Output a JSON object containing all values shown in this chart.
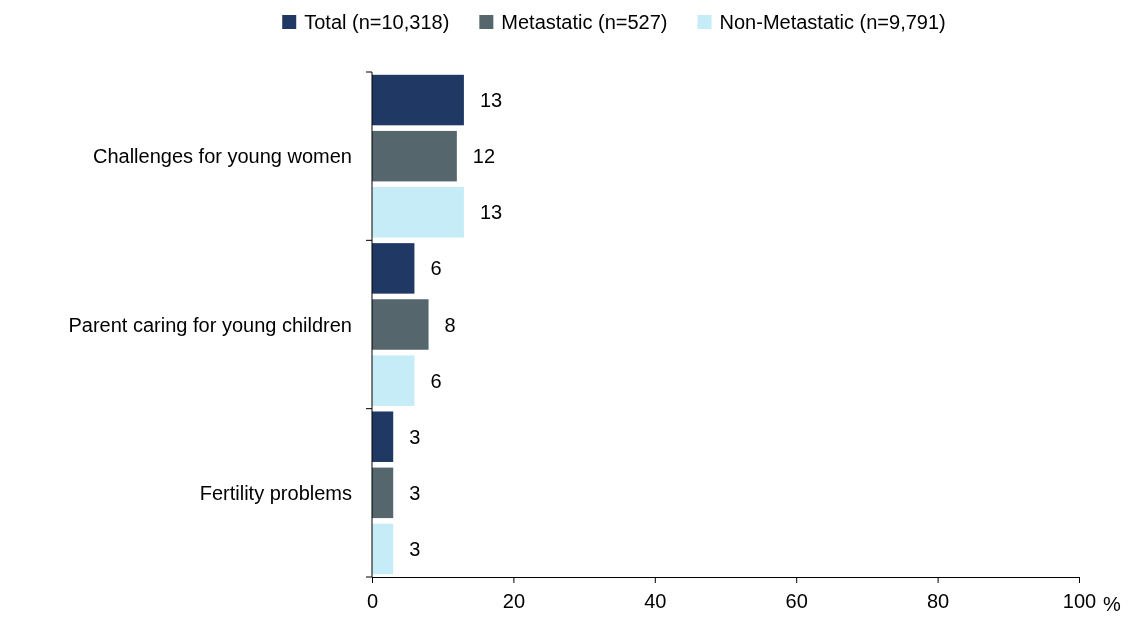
{
  "chart_data": {
    "type": "bar",
    "orientation": "horizontal",
    "categories": [
      "Challenges for young women",
      "Parent caring for young children",
      "Fertility problems"
    ],
    "series": [
      {
        "name": "Total (n=10,318)",
        "color": "#1f3864",
        "values": [
          13,
          6,
          3
        ]
      },
      {
        "name": "Metastatic (n=527)",
        "color": "#55676d",
        "values": [
          12,
          8,
          3
        ]
      },
      {
        "name": "Non-Metastatic (n=9,791)",
        "color": "#c5ecf7",
        "values": [
          13,
          6,
          3
        ]
      }
    ],
    "xlim": [
      0,
      100
    ],
    "xticks": [
      0,
      20,
      40,
      60,
      80,
      {
        "value": 100,
        "label": "100"
      }
    ],
    "xlabel": "%",
    "data_labels": true,
    "legend": "top",
    "grid": false
  }
}
